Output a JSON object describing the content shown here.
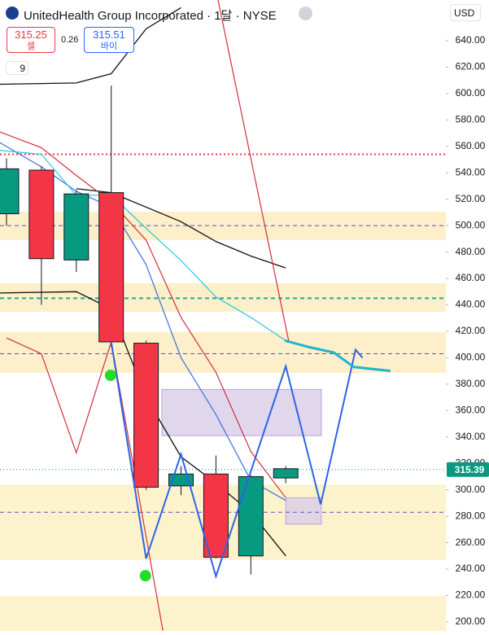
{
  "header": {
    "title": "UnitedHealth Group Incorporated · 1달 · NYSE",
    "sell_price": 315.25,
    "sell_label": "셀",
    "spread": 0.26,
    "buy_price": 315.51,
    "buy_label": "바이",
    "indicator_count": "9",
    "currency": "USD"
  },
  "chart_data": {
    "type": "candlestick",
    "ylim": [
      193.2,
      670.8
    ],
    "yticks": [
      {
        "value": 200,
        "label": "200.00"
      },
      {
        "value": 220,
        "label": "220.00"
      },
      {
        "value": 240,
        "label": "240.00"
      },
      {
        "value": 260,
        "label": "260.00"
      },
      {
        "value": 280,
        "label": "280.00"
      },
      {
        "value": 300,
        "label": "300.00"
      },
      {
        "value": 320,
        "label": "320.00"
      },
      {
        "value": 340,
        "label": "340.00"
      },
      {
        "value": 360,
        "label": "360.00"
      },
      {
        "value": 380,
        "label": "380.00"
      },
      {
        "value": 400,
        "label": "400.00"
      },
      {
        "value": 420,
        "label": "420.00"
      },
      {
        "value": 440,
        "label": "440.00"
      },
      {
        "value": 460,
        "label": "460.00"
      },
      {
        "value": 480,
        "label": "480.00"
      },
      {
        "value": 500,
        "label": "500.00"
      },
      {
        "value": 520,
        "label": "520.00"
      },
      {
        "value": 540,
        "label": "540.00"
      },
      {
        "value": 560,
        "label": "560.00"
      },
      {
        "value": 580,
        "label": "580.00"
      },
      {
        "value": 600,
        "label": "600.00"
      },
      {
        "value": 620,
        "label": "620.00"
      },
      {
        "value": 640,
        "label": "640.00"
      }
    ],
    "up_color": "#089981",
    "down_color": "#f23645",
    "x": [
      0,
      1,
      2,
      3,
      4,
      5,
      6,
      7,
      8
    ],
    "open": [
      509,
      542,
      474,
      525,
      411,
      303,
      312,
      250,
      309
    ],
    "high": [
      551,
      545,
      527,
      606,
      413,
      318,
      326,
      311,
      318
    ],
    "low": [
      500,
      440,
      465,
      408,
      300,
      296,
      248,
      236,
      305
    ],
    "close": [
      543,
      475,
      524,
      412,
      302,
      312,
      249,
      310,
      316
    ],
    "last_price": 315.39,
    "last_price_color": "#089981",
    "zones": [
      {
        "from": 510.6,
        "to": 489,
        "color": "#fcefc9"
      },
      {
        "from": 456.4,
        "to": 434.8,
        "color": "#fcefc9"
      },
      {
        "from": 419.4,
        "to": 388.6,
        "color": "#fcefc9"
      },
      {
        "from": 304,
        "to": 247,
        "color": "#fcf3cc"
      },
      {
        "from": 219.7,
        "to": 193.2,
        "color": "#fcf3cc"
      }
    ],
    "boxes": [
      {
        "x": [
          4.45,
          9.02
        ],
        "from": 376,
        "to": 341,
        "color": "#d9cde8"
      },
      {
        "x": [
          8.0,
          9.02
        ],
        "from": 294,
        "to": 274,
        "color": "#d9cde8"
      }
    ],
    "hlines": [
      {
        "value": 554,
        "color": "#f23645",
        "dash": "2,3",
        "width": 2
      },
      {
        "value": 500,
        "color": "#5b4fc9",
        "dash": "5,4",
        "width": 1
      },
      {
        "value": 445,
        "color": "#22ab94",
        "dash": "5,4",
        "width": 2
      },
      {
        "value": 403,
        "color": "#5b4fc9",
        "dash": "5,4",
        "width": 1
      },
      {
        "value": 283,
        "color": "#5b4fc9",
        "dash": "5,4",
        "width": 1
      },
      {
        "value": 315.39,
        "color": "#089981",
        "dash": "1,3",
        "width": 1
      }
    ],
    "lines": [
      {
        "color": "#111111",
        "width": 1.3,
        "x": [
          -0.2,
          2,
          3,
          4,
          5
        ],
        "values": [
          607,
          608,
          615,
          649,
          665
        ]
      },
      {
        "color": "#111111",
        "width": 1.3,
        "x": [
          2,
          3,
          4,
          5,
          6,
          7,
          8
        ],
        "values": [
          528,
          525,
          514,
          503,
          488,
          477,
          468
        ]
      },
      {
        "color": "#111111",
        "width": 1.3,
        "x": [
          -0.2,
          2,
          3,
          4,
          5,
          6,
          7,
          8
        ],
        "values": [
          449,
          450,
          437,
          370,
          325,
          305,
          283,
          250
        ]
      },
      {
        "color": "#d32f3c",
        "width": 1.2,
        "x": [
          -0.2,
          1,
          2,
          3,
          4,
          5,
          6,
          7,
          8
        ],
        "values": [
          571,
          559,
          538,
          518,
          489,
          430.5,
          389,
          329,
          294
        ]
      },
      {
        "color": "#d32f3c",
        "width": 1.2,
        "x": [
          0,
          1,
          2,
          3,
          4.48
        ],
        "values": [
          415,
          403,
          328,
          412,
          193.5
        ]
      },
      {
        "color": "#d32f3c",
        "width": 1.2,
        "x": [
          6.06,
          8.09
        ],
        "values": [
          670.8,
          412
        ]
      },
      {
        "color": "#3d6fe0",
        "width": 1.2,
        "x": [
          -0.2,
          1,
          2,
          3,
          4,
          5,
          6,
          7,
          8
        ],
        "values": [
          563,
          544.5,
          526,
          514,
          470.5,
          400,
          357,
          307,
          292
        ]
      },
      {
        "color": "#26c6da",
        "width": 1.2,
        "x": [
          -0.2,
          1,
          2,
          3,
          4,
          5,
          6,
          7,
          8
        ],
        "values": [
          557,
          554,
          523,
          523,
          498,
          473.6,
          446,
          430.5,
          413
        ]
      },
      {
        "color": "#2f63e6",
        "width": 2,
        "x": [
          3,
          4,
          5,
          6,
          8,
          9,
          10,
          10.2
        ],
        "values": [
          412,
          248,
          327,
          234.5,
          393.5,
          289,
          406,
          400
        ]
      },
      {
        "color": "#1fb5cc",
        "width": 3,
        "x": [
          7.97,
          8.67,
          9.37,
          9.95,
          11.0
        ],
        "values": [
          413,
          408,
          404,
          393,
          390
        ]
      }
    ],
    "dots": {
      "color": "#22dd22",
      "x": [
        2.98,
        3.98
      ],
      "values": [
        386.7,
        235
      ]
    }
  }
}
